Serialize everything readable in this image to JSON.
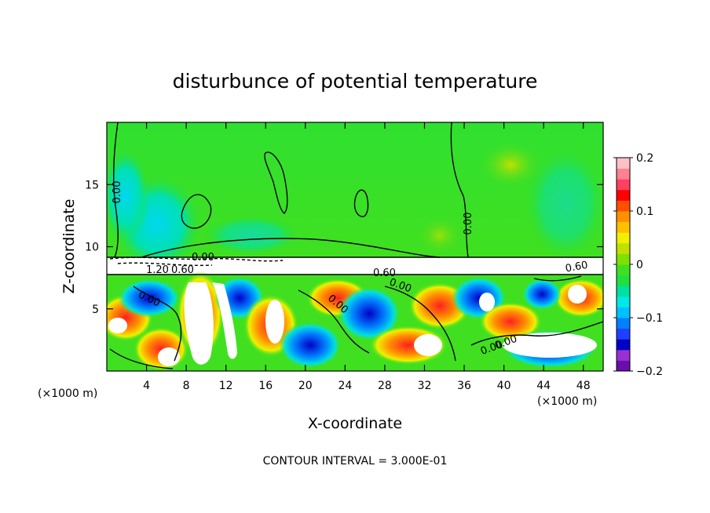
{
  "chart_data": {
    "type": "heatmap",
    "title": "disturbunce of potential temperature",
    "xlabel": "X-coordinate",
    "ylabel": "Z-coordinate",
    "x_unit": "(×1000 m)",
    "y_unit": "(×1000 m)",
    "xlim": [
      0,
      50
    ],
    "ylim": [
      0,
      20
    ],
    "x_ticks": [
      4,
      8,
      12,
      16,
      20,
      24,
      28,
      32,
      36,
      40,
      44,
      48
    ],
    "y_ticks": [
      5,
      10,
      15
    ],
    "colorbar": {
      "range": [
        -0.2,
        0.2
      ],
      "tick_labels": [
        "0.2",
        "0.1",
        "0",
        "−0.1",
        "−0.2"
      ],
      "tick_values": [
        0.2,
        0.1,
        0,
        -0.1,
        -0.2
      ],
      "colors": [
        "#6a0dad",
        "#9b30d0",
        "#0000c8",
        "#2040ff",
        "#0080ff",
        "#00c0ff",
        "#00e8e8",
        "#00e0a0",
        "#20e040",
        "#40e020",
        "#80e000",
        "#c0e000",
        "#f0f000",
        "#ffc000",
        "#ff9000",
        "#ff5000",
        "#ff0000",
        "#ff4060",
        "#ff8090",
        "#ffc0c8"
      ]
    },
    "contour_labels": [
      "0.00",
      "0.00",
      "1.20",
      "0.60",
      "0.00",
      "0.60",
      "0.00",
      "0.00",
      "0.00",
      "0.60",
      "0.00",
      "0.00"
    ],
    "contour_interval_text": "CONTOUR INTERVAL = 3.000E-01"
  }
}
